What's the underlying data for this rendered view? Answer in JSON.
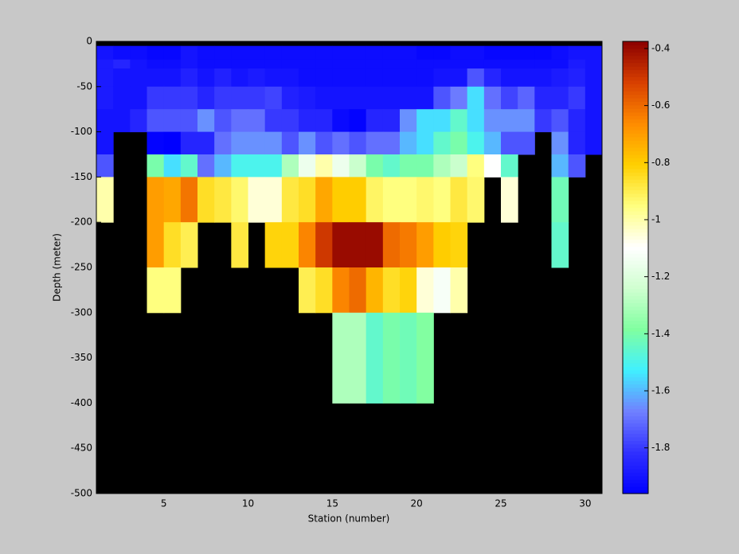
{
  "chart_data": {
    "type": "heatmap",
    "x_label": "Station (number)",
    "y_label": "Depth (meter)",
    "x_edges": [
      1,
      2,
      3,
      4,
      5,
      6,
      7,
      8,
      9,
      10,
      11,
      12,
      13,
      14,
      15,
      16,
      17,
      18,
      19,
      20,
      21,
      22,
      23,
      24,
      25,
      26,
      27,
      28,
      29,
      30,
      31
    ],
    "y_edges": [
      0,
      -5,
      -20,
      -30,
      -50,
      -75,
      -100,
      -125,
      -150,
      -200,
      -250,
      -300,
      -400,
      -500
    ],
    "values": [
      [
        null,
        null,
        null,
        null,
        null,
        null,
        null,
        null,
        null,
        null,
        null,
        null,
        null,
        null,
        null,
        null,
        null,
        null,
        null,
        null,
        null,
        null,
        null,
        null,
        null,
        null,
        null,
        null,
        null,
        null
      ],
      [
        -1.9,
        -1.92,
        -1.92,
        -1.94,
        -1.94,
        -1.9,
        -1.92,
        -1.92,
        -1.92,
        -1.92,
        -1.92,
        -1.92,
        -1.92,
        -1.92,
        -1.92,
        -1.92,
        -1.92,
        -1.92,
        -1.92,
        -1.94,
        -1.94,
        -1.92,
        -1.92,
        -1.94,
        -1.94,
        -1.94,
        -1.94,
        -1.92,
        -1.9,
        -1.9
      ],
      [
        -1.88,
        -1.85,
        -1.9,
        -1.92,
        -1.92,
        -1.9,
        -1.92,
        -1.92,
        -1.92,
        -1.92,
        -1.92,
        -1.92,
        -1.92,
        -1.92,
        -1.92,
        -1.92,
        -1.92,
        -1.92,
        -1.92,
        -1.92,
        -1.92,
        -1.92,
        -1.92,
        -1.92,
        -1.92,
        -1.92,
        -1.92,
        -1.92,
        -1.88,
        -1.9
      ],
      [
        -1.88,
        -1.9,
        -1.9,
        -1.9,
        -1.9,
        -1.86,
        -1.9,
        -1.86,
        -1.9,
        -1.88,
        -1.9,
        -1.9,
        -1.92,
        -1.92,
        -1.92,
        -1.92,
        -1.92,
        -1.92,
        -1.92,
        -1.92,
        -1.9,
        -1.9,
        -1.75,
        -1.85,
        -1.9,
        -1.9,
        -1.9,
        -1.88,
        -1.86,
        -1.9
      ],
      [
        -1.88,
        -1.9,
        -1.9,
        -1.8,
        -1.8,
        -1.8,
        -1.85,
        -1.8,
        -1.8,
        -1.8,
        -1.78,
        -1.86,
        -1.88,
        -1.9,
        -1.9,
        -1.9,
        -1.9,
        -1.9,
        -1.9,
        -1.9,
        -1.75,
        -1.68,
        -1.55,
        -1.7,
        -1.78,
        -1.72,
        -1.85,
        -1.85,
        -1.8,
        -1.9
      ],
      [
        -1.9,
        -1.9,
        -1.85,
        -1.75,
        -1.75,
        -1.75,
        -1.65,
        -1.75,
        -1.7,
        -1.7,
        -1.8,
        -1.8,
        -1.85,
        -1.85,
        -1.93,
        -1.95,
        -1.85,
        -1.85,
        -1.65,
        -1.55,
        -1.55,
        -1.45,
        -1.55,
        -1.65,
        -1.65,
        -1.65,
        -1.8,
        -1.75,
        -1.85,
        -1.9
      ],
      [
        -1.9,
        null,
        null,
        -1.95,
        -1.97,
        -1.85,
        -1.85,
        -1.7,
        -1.65,
        -1.65,
        -1.65,
        -1.75,
        -1.65,
        -1.75,
        -1.7,
        -1.75,
        -1.7,
        -1.7,
        -1.6,
        -1.55,
        -1.45,
        -1.4,
        -1.5,
        -1.6,
        -1.75,
        -1.75,
        null,
        -1.65,
        -1.85,
        -1.9
      ],
      [
        -1.75,
        null,
        null,
        -1.4,
        -1.55,
        -1.45,
        -1.7,
        -1.6,
        -1.5,
        -1.5,
        -1.5,
        -1.3,
        -1.15,
        -1.0,
        -1.15,
        -1.25,
        -1.4,
        -1.45,
        -1.4,
        -1.4,
        -1.3,
        -1.25,
        -0.95,
        -1.1,
        -1.45,
        null,
        null,
        -1.6,
        -1.75,
        null
      ],
      [
        -1.0,
        null,
        null,
        -0.7,
        -0.72,
        -0.62,
        -0.85,
        -0.88,
        -0.93,
        -1.05,
        -1.05,
        -0.88,
        -0.85,
        -0.72,
        -0.8,
        -0.8,
        -0.92,
        -0.95,
        -0.95,
        -0.93,
        -0.95,
        -0.88,
        -0.93,
        null,
        -1.05,
        null,
        null,
        -1.42,
        null,
        null
      ],
      [
        null,
        null,
        null,
        -0.7,
        -0.85,
        -0.9,
        null,
        null,
        -0.88,
        null,
        -0.82,
        -0.82,
        -0.65,
        -0.5,
        -0.4,
        -0.4,
        -0.4,
        -0.6,
        -0.63,
        -0.7,
        -0.8,
        -0.82,
        null,
        null,
        null,
        null,
        null,
        -1.45,
        null,
        null
      ],
      [
        null,
        null,
        null,
        -0.95,
        -0.95,
        null,
        null,
        null,
        null,
        null,
        null,
        null,
        -0.9,
        -0.85,
        -0.65,
        -0.6,
        -0.75,
        -0.85,
        -0.82,
        -1.05,
        -1.12,
        -1.0,
        null,
        null,
        null,
        null,
        null,
        null,
        null,
        null
      ],
      [
        null,
        null,
        null,
        null,
        null,
        null,
        null,
        null,
        null,
        null,
        null,
        null,
        null,
        null,
        -1.3,
        -1.3,
        -1.45,
        -1.4,
        -1.42,
        -1.38,
        null,
        null,
        null,
        null,
        null,
        null,
        null,
        null,
        null,
        null
      ],
      [
        null,
        null,
        null,
        null,
        null,
        null,
        null,
        null,
        null,
        null,
        null,
        null,
        null,
        null,
        null,
        null,
        null,
        null,
        null,
        null,
        null,
        null,
        null,
        null,
        null,
        null,
        null,
        null,
        null,
        null
      ]
    ],
    "xlim": [
      1,
      31
    ],
    "ylim": [
      -500,
      0
    ],
    "xticks": [
      5,
      10,
      15,
      20,
      25,
      30
    ],
    "yticks": [
      0,
      -50,
      -100,
      -150,
      -200,
      -250,
      -300,
      -350,
      -400,
      -450,
      -500
    ],
    "clim": [
      -1.96,
      -0.375
    ],
    "cticks": [
      -0.4,
      -0.6,
      -0.8,
      -1,
      -1.2,
      -1.4,
      -1.6,
      -1.8
    ],
    "colormap": [
      "#0000ff",
      "#3030ff",
      "#7080ff",
      "#40f0ff",
      "#80ffa0",
      "#d0ffd0",
      "#ffffff",
      "#ffff80",
      "#ffd000",
      "#ff8c00",
      "#d84000",
      "#8c0000"
    ],
    "nan_color": "#000000"
  }
}
